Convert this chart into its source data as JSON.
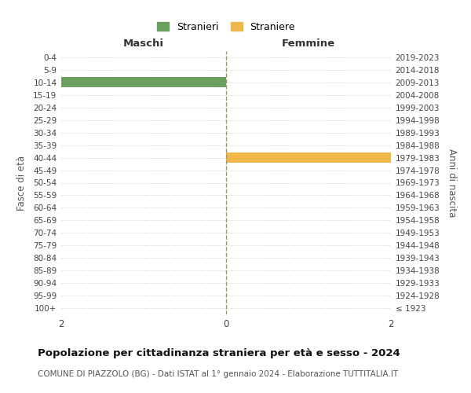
{
  "age_groups": [
    "100+",
    "95-99",
    "90-94",
    "85-89",
    "80-84",
    "75-79",
    "70-74",
    "65-69",
    "60-64",
    "55-59",
    "50-54",
    "45-49",
    "40-44",
    "35-39",
    "30-34",
    "25-29",
    "20-24",
    "15-19",
    "10-14",
    "5-9",
    "0-4"
  ],
  "birth_years": [
    "≤ 1923",
    "1924-1928",
    "1929-1933",
    "1934-1938",
    "1939-1943",
    "1944-1948",
    "1949-1953",
    "1954-1958",
    "1959-1963",
    "1964-1968",
    "1969-1973",
    "1974-1978",
    "1979-1983",
    "1984-1988",
    "1989-1993",
    "1994-1998",
    "1999-2003",
    "2004-2008",
    "2009-2013",
    "2014-2018",
    "2019-2023"
  ],
  "males": [
    0,
    0,
    0,
    0,
    0,
    0,
    0,
    0,
    0,
    0,
    0,
    0,
    0,
    0,
    0,
    0,
    0,
    0,
    2,
    0,
    0
  ],
  "females": [
    0,
    0,
    0,
    0,
    0,
    0,
    0,
    0,
    0,
    0,
    0,
    0,
    2,
    0,
    0,
    0,
    0,
    0,
    0,
    0,
    0
  ],
  "male_color": "#6a9f5e",
  "female_color": "#f0b84b",
  "male_label": "Stranieri",
  "female_label": "Straniere",
  "xlim": [
    -2,
    2
  ],
  "xticks": [
    -2,
    0,
    2
  ],
  "xlabel_left": "Maschi",
  "xlabel_right": "Femmine",
  "ylabel_left": "Fasce di età",
  "ylabel_right": "Anni di nascita",
  "title": "Popolazione per cittadinanza straniera per età e sesso - 2024",
  "subtitle": "COMUNE DI PIAZZOLO (BG) - Dati ISTAT al 1° gennaio 2024 - Elaborazione TUTTITALIA.IT",
  "background_color": "#ffffff",
  "grid_color": "#cccccc",
  "center_line_color": "#999966",
  "bar_height": 0.8
}
